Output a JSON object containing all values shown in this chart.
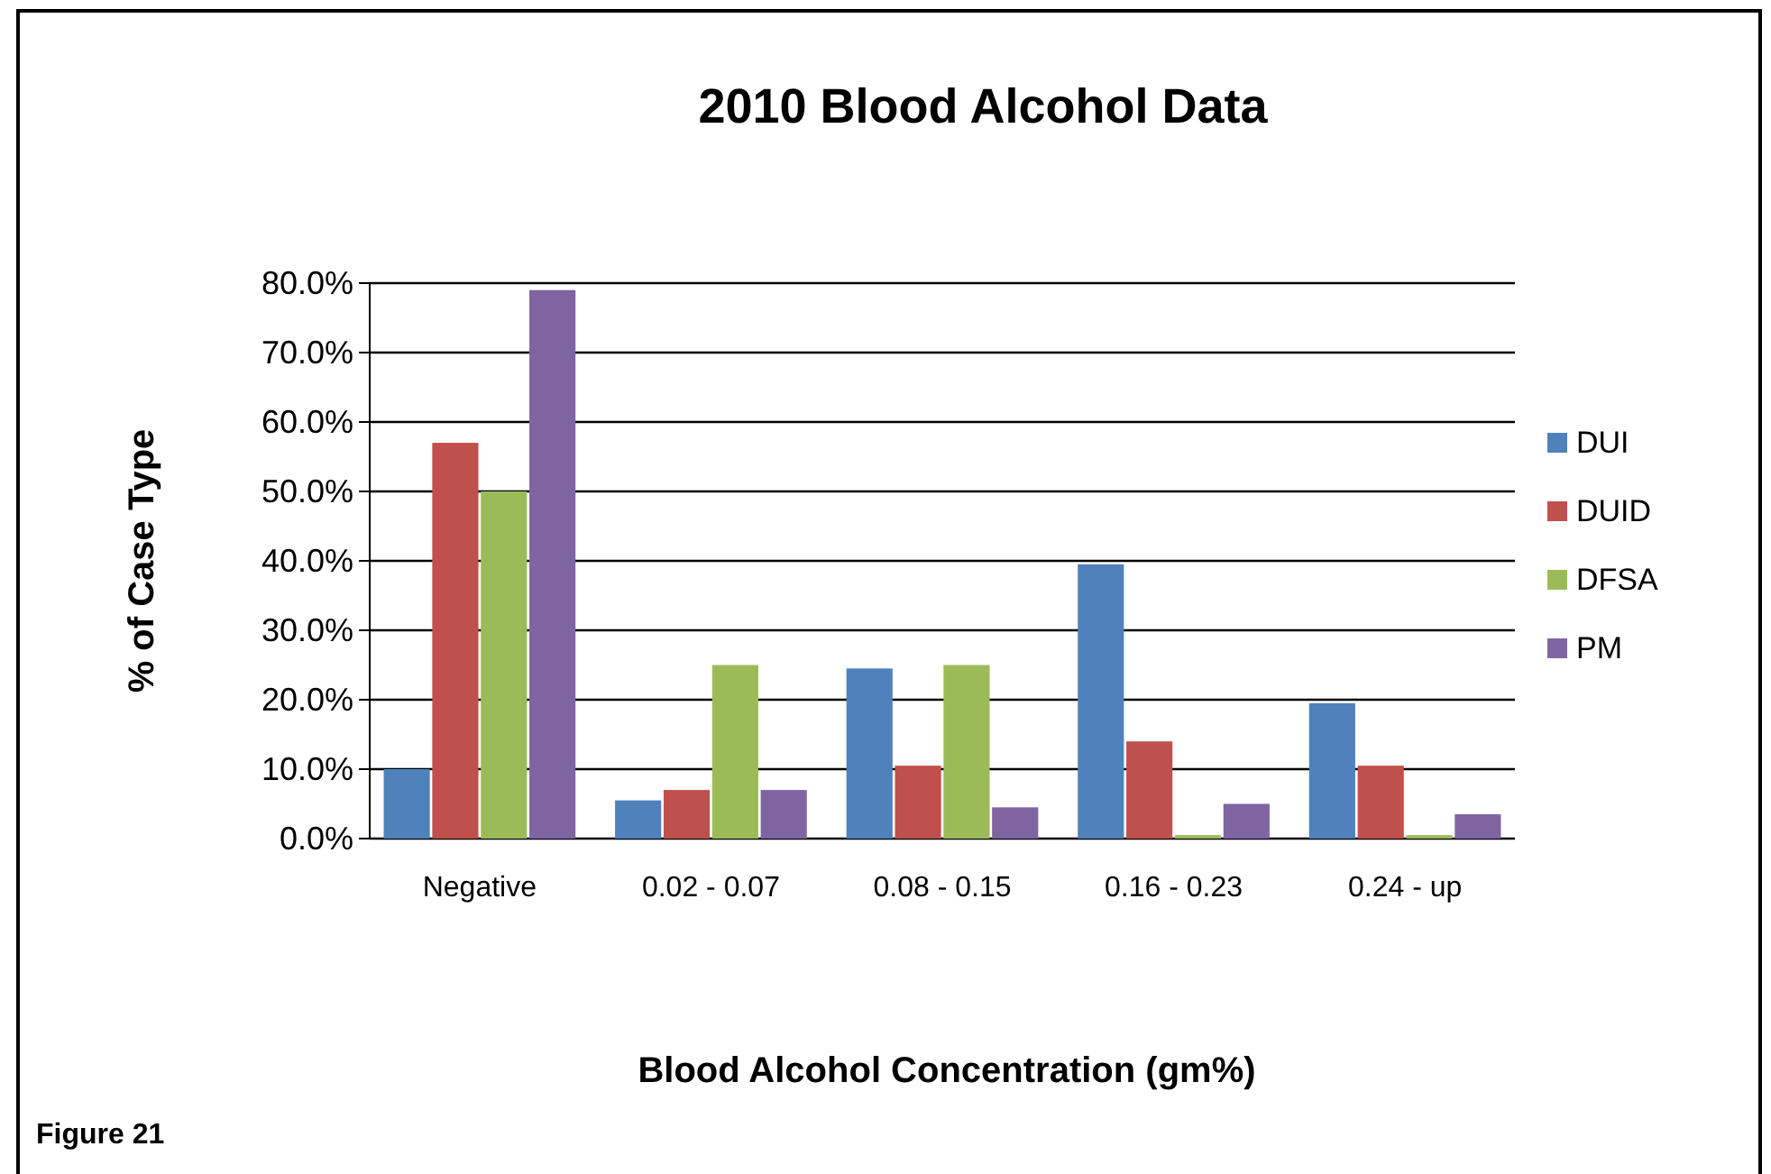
{
  "chart_data": {
    "type": "bar",
    "title": "2010 Blood Alcohol Data",
    "xlabel": "Blood Alcohol Concentration (gm%)",
    "ylabel": "% of Case Type",
    "categories": [
      "Negative",
      "0.02 - 0.07",
      "0.08 - 0.15",
      "0.16 - 0.23",
      "0.24 - up"
    ],
    "series": [
      {
        "name": "DUI",
        "color": "#4f81bd",
        "values": [
          10,
          5.5,
          24.5,
          39.5,
          19.5
        ]
      },
      {
        "name": "DUID",
        "color": "#c0504d",
        "values": [
          57,
          7,
          10.5,
          14,
          10.5
        ]
      },
      {
        "name": "DFSA",
        "color": "#9bbb59",
        "values": [
          50,
          25,
          25,
          0.5,
          0.5
        ]
      },
      {
        "name": "PM",
        "color": "#8064a2",
        "values": [
          79,
          7,
          4.5,
          5,
          3.5
        ]
      }
    ],
    "ylim": [
      0,
      80
    ],
    "yticks": [
      {
        "value": 0,
        "label": "0.0%"
      },
      {
        "value": 10,
        "label": "10.0%"
      },
      {
        "value": 20,
        "label": "20.0%"
      },
      {
        "value": 30,
        "label": "30.0%"
      },
      {
        "value": 40,
        "label": "40.0%"
      },
      {
        "value": 50,
        "label": "50.0%"
      },
      {
        "value": 60,
        "label": "60.0%"
      },
      {
        "value": 70,
        "label": "70.0%"
      },
      {
        "value": 80,
        "label": "80.0%"
      }
    ],
    "grid": "y",
    "legend": "right",
    "annotations": [
      "Figure 21"
    ]
  }
}
